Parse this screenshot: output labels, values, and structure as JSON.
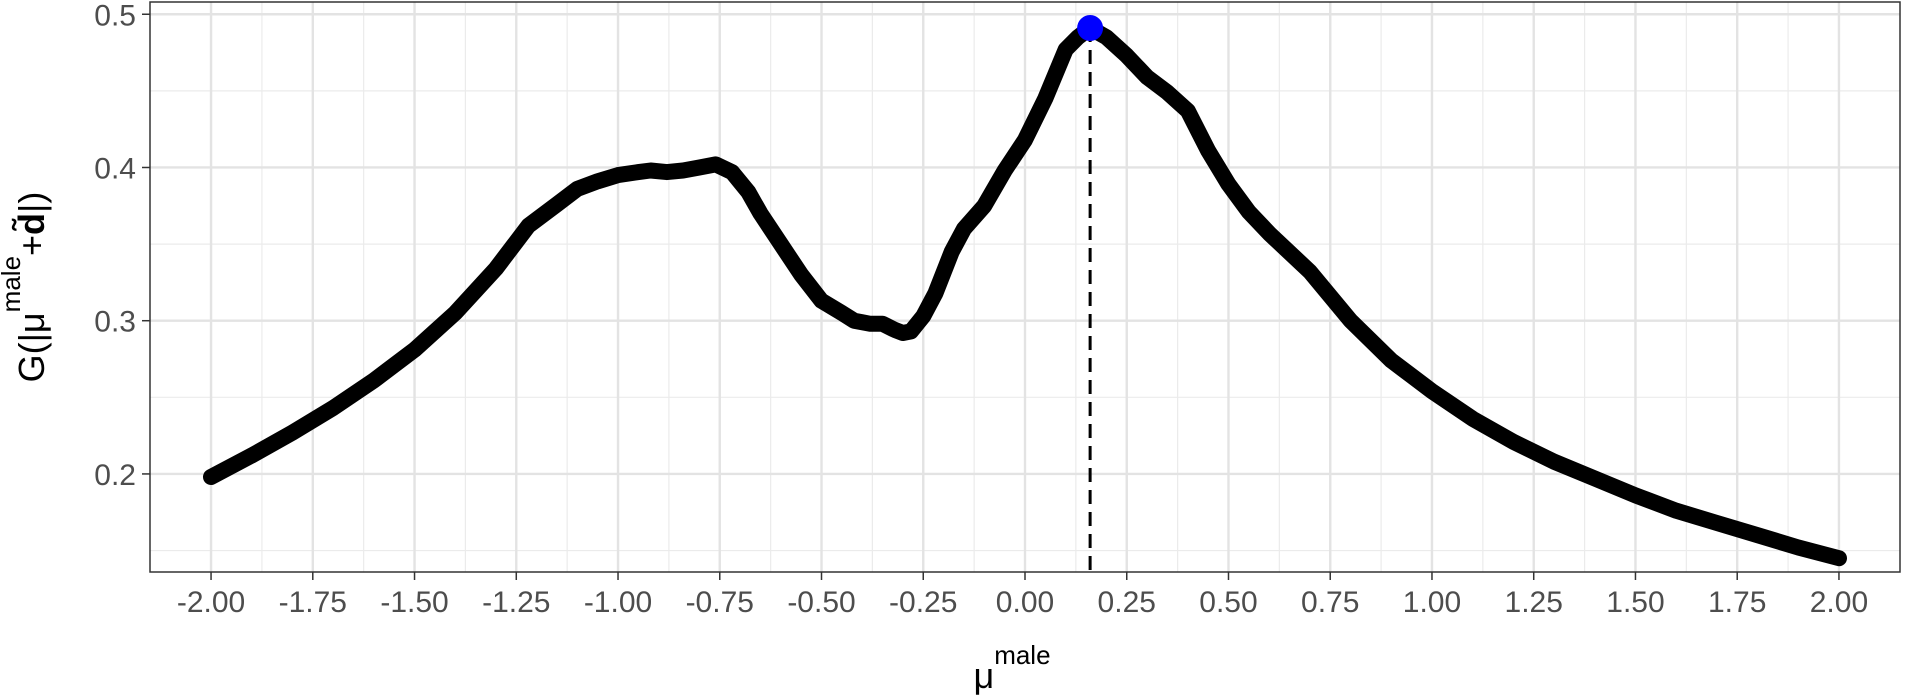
{
  "chart_data": {
    "type": "line",
    "xlabel_base": "μ",
    "xlabel_sup": "male",
    "ylabel": {
      "prefix": "G(|μ",
      "sup": "male",
      "plus": "+",
      "bold": "d̃",
      "suffix": "|)"
    },
    "xlim": [
      -2.15,
      2.15
    ],
    "ylim": [
      0.136,
      0.508
    ],
    "x_ticks": [
      -2.0,
      -1.75,
      -1.5,
      -1.25,
      -1.0,
      -0.75,
      -0.5,
      -0.25,
      0.0,
      0.25,
      0.5,
      0.75,
      1.0,
      1.25,
      1.5,
      1.75,
      2.0
    ],
    "x_tick_labels": [
      "-2.00",
      "-1.75",
      "-1.50",
      "-1.25",
      "-1.00",
      "-0.75",
      "-0.50",
      "-0.25",
      "0.00",
      "0.25",
      "0.50",
      "0.75",
      "1.00",
      "1.25",
      "1.50",
      "1.75",
      "2.00"
    ],
    "y_ticks": [
      0.2,
      0.3,
      0.4,
      0.5
    ],
    "y_tick_labels": [
      "0.2",
      "0.3",
      "0.4",
      "0.5"
    ],
    "grid": true,
    "series": [
      {
        "color": "#000000",
        "x": [
          -2.0,
          -1.9,
          -1.8,
          -1.7,
          -1.6,
          -1.5,
          -1.4,
          -1.3,
          -1.22,
          -1.15,
          -1.1,
          -1.05,
          -1.0,
          -0.95,
          -0.92,
          -0.88,
          -0.84,
          -0.8,
          -0.76,
          -0.72,
          -0.68,
          -0.65,
          -0.6,
          -0.55,
          -0.5,
          -0.45,
          -0.42,
          -0.4,
          -0.38,
          -0.35,
          -0.32,
          -0.3,
          -0.28,
          -0.25,
          -0.22,
          -0.18,
          -0.15,
          -0.1,
          -0.05,
          0.0,
          0.05,
          0.1,
          0.13,
          0.16,
          0.2,
          0.25,
          0.3,
          0.35,
          0.4,
          0.45,
          0.5,
          0.55,
          0.6,
          0.7,
          0.8,
          0.9,
          1.0,
          1.1,
          1.2,
          1.3,
          1.4,
          1.5,
          1.6,
          1.7,
          1.8,
          1.9,
          2.0
        ],
        "y": [
          0.198,
          0.212,
          0.227,
          0.243,
          0.261,
          0.281,
          0.305,
          0.334,
          0.362,
          0.376,
          0.386,
          0.391,
          0.395,
          0.397,
          0.398,
          0.397,
          0.398,
          0.4,
          0.402,
          0.397,
          0.384,
          0.37,
          0.35,
          0.33,
          0.313,
          0.305,
          0.3,
          0.299,
          0.298,
          0.298,
          0.294,
          0.292,
          0.293,
          0.303,
          0.318,
          0.345,
          0.36,
          0.375,
          0.398,
          0.418,
          0.445,
          0.477,
          0.485,
          0.491,
          0.485,
          0.473,
          0.459,
          0.449,
          0.437,
          0.411,
          0.389,
          0.371,
          0.357,
          0.332,
          0.3,
          0.274,
          0.254,
          0.236,
          0.221,
          0.208,
          0.197,
          0.186,
          0.176,
          0.168,
          0.16,
          0.152,
          0.145
        ]
      }
    ],
    "highlight_point": {
      "x": 0.16,
      "y": 0.491,
      "color": "#0000ff"
    },
    "reference_line": {
      "x": 0.16,
      "style": "dashed",
      "color": "#000000"
    }
  }
}
